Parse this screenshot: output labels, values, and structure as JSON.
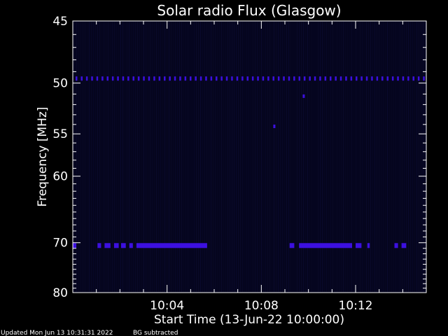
{
  "chart_data": {
    "type": "heatmap",
    "title": "Solar radio Flux (Glasgow)",
    "xlabel": "Start Time (13-Jun-22 10:00:00)",
    "ylabel": "Frequency [MHz]",
    "x_unit": "minutes after 10:00:00",
    "xlim": [
      0.0,
      15.0
    ],
    "ylim": [
      45,
      80
    ],
    "y_ticks": [
      45,
      50,
      55,
      60,
      70,
      80
    ],
    "x_ticks": [
      {
        "value": 4,
        "label": "10:04"
      },
      {
        "value": 8,
        "label": "10:08"
      },
      {
        "value": 12,
        "label": "10:12"
      }
    ],
    "background_color": "#05051e",
    "signal_color": "#3c10e0",
    "dotted_line": {
      "frequency": 49.6,
      "spacing_min": 0.22
    },
    "bands": [
      {
        "frequency": 70.5,
        "x_start": 0.0,
        "x_end": 0.15
      },
      {
        "frequency": 70.5,
        "x_start": 1.05,
        "x_end": 1.2
      },
      {
        "frequency": 70.5,
        "x_start": 1.35,
        "x_end": 1.6
      },
      {
        "frequency": 70.5,
        "x_start": 1.75,
        "x_end": 1.95
      },
      {
        "frequency": 70.5,
        "x_start": 2.05,
        "x_end": 2.25
      },
      {
        "frequency": 70.5,
        "x_start": 2.4,
        "x_end": 2.55
      },
      {
        "frequency": 70.5,
        "x_start": 2.7,
        "x_end": 5.7
      },
      {
        "frequency": 70.5,
        "x_start": 9.2,
        "x_end": 9.4
      },
      {
        "frequency": 70.5,
        "x_start": 9.6,
        "x_end": 11.85
      },
      {
        "frequency": 70.5,
        "x_start": 12.0,
        "x_end": 12.25
      },
      {
        "frequency": 70.5,
        "x_start": 12.5,
        "x_end": 12.6
      },
      {
        "frequency": 70.5,
        "x_start": 13.65,
        "x_end": 13.8
      },
      {
        "frequency": 70.5,
        "x_start": 13.95,
        "x_end": 14.15
      }
    ],
    "spots": [
      {
        "x": 8.55,
        "frequency": 54.2
      },
      {
        "x": 9.8,
        "frequency": 51.2
      }
    ]
  },
  "footer": {
    "updated": "Updated Mon Jun 13 10:31:31 2022",
    "note": "BG subtracted"
  }
}
